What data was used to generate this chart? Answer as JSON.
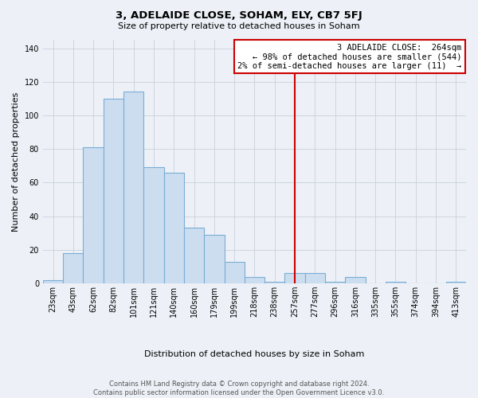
{
  "title": "3, ADELAIDE CLOSE, SOHAM, ELY, CB7 5FJ",
  "subtitle": "Size of property relative to detached houses in Soham",
  "xlabel": "Distribution of detached houses by size in Soham",
  "ylabel": "Number of detached properties",
  "bar_labels": [
    "23sqm",
    "43sqm",
    "62sqm",
    "82sqm",
    "101sqm",
    "121sqm",
    "140sqm",
    "160sqm",
    "179sqm",
    "199sqm",
    "218sqm",
    "238sqm",
    "257sqm",
    "277sqm",
    "296sqm",
    "316sqm",
    "335sqm",
    "355sqm",
    "374sqm",
    "394sqm",
    "413sqm"
  ],
  "bar_values": [
    2,
    18,
    81,
    110,
    114,
    69,
    66,
    33,
    29,
    13,
    4,
    1,
    6,
    6,
    1,
    4,
    0,
    1,
    0,
    0,
    1
  ],
  "bar_color": "#ccddf0",
  "bar_edge_color": "#7aadd4",
  "grid_color": "#c8d0dc",
  "vline_x": 12,
  "vline_color": "#cc0000",
  "legend_title": "3 ADELAIDE CLOSE:  264sqm",
  "legend_line1": "← 98% of detached houses are smaller (544)",
  "legend_line2": "2% of semi-detached houses are larger (11)  →",
  "footer_line1": "Contains HM Land Registry data © Crown copyright and database right 2024.",
  "footer_line2": "Contains public sector information licensed under the Open Government Licence v3.0.",
  "ylim": [
    0,
    145
  ],
  "yticks": [
    0,
    20,
    40,
    60,
    80,
    100,
    120,
    140
  ],
  "background_color": "#edf1f7",
  "title_fontsize": 9.5,
  "subtitle_fontsize": 8,
  "ylabel_fontsize": 8,
  "xlabel_fontsize": 8,
  "tick_fontsize": 7,
  "footer_fontsize": 6
}
